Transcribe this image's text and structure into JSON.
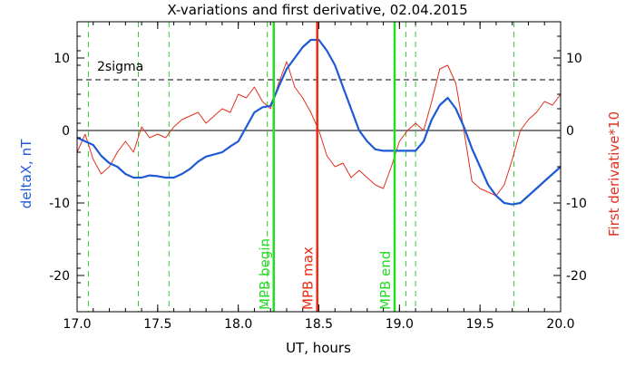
{
  "chart_data": {
    "type": "line",
    "title": "X-variations and first derivative, 02.04.2015",
    "xlabel": "UT, hours",
    "ylabel_left": "deltaX, nT",
    "ylabel_right": "First derivative*10",
    "xlim": [
      17.0,
      20.0
    ],
    "ylim": [
      -25,
      15
    ],
    "x_ticks": [
      17.0,
      17.5,
      18.0,
      18.5,
      19.0,
      19.5,
      20.0
    ],
    "x_tick_labels": [
      "17.0",
      "17.5",
      "18.0",
      "18.5",
      "19.0",
      "19.5",
      "20.0"
    ],
    "y_ticks": [
      -20,
      -10,
      0,
      10
    ],
    "y_tick_labels": [
      "-20",
      "-10",
      "0",
      "10"
    ],
    "colors": {
      "deltaX": "#1f5ad6",
      "derivative": "#e0301e",
      "mpb_begin_end": "#22dd22",
      "mpb_max": "#ee2a10",
      "dashed_green": "#33cc33",
      "axes": "#000000"
    },
    "series": [
      {
        "name": "deltaX, nT",
        "axis": "left",
        "x": [
          17.0,
          17.05,
          17.1,
          17.15,
          17.2,
          17.25,
          17.3,
          17.35,
          17.4,
          17.45,
          17.5,
          17.55,
          17.6,
          17.65,
          17.7,
          17.75,
          17.8,
          17.85,
          17.9,
          17.95,
          18.0,
          18.05,
          18.1,
          18.15,
          18.2,
          18.25,
          18.3,
          18.35,
          18.4,
          18.45,
          18.5,
          18.55,
          18.6,
          18.65,
          18.7,
          18.75,
          18.8,
          18.85,
          18.9,
          18.95,
          19.0,
          19.05,
          19.1,
          19.15,
          19.2,
          19.25,
          19.3,
          19.35,
          19.4,
          19.45,
          19.5,
          19.55,
          19.6,
          19.65,
          19.7,
          19.75,
          19.8,
          19.85,
          19.9,
          19.95,
          20.0
        ],
        "values": [
          -1.0,
          -1.5,
          -2.0,
          -3.5,
          -4.5,
          -5.0,
          -6.0,
          -6.5,
          -6.5,
          -6.2,
          -6.3,
          -6.5,
          -6.5,
          -6.0,
          -5.3,
          -4.3,
          -3.6,
          -3.3,
          -3.0,
          -2.2,
          -1.5,
          0.5,
          2.5,
          3.2,
          3.4,
          6.0,
          8.5,
          10.0,
          11.5,
          12.5,
          12.5,
          11.0,
          9.0,
          6.0,
          3.0,
          0.0,
          -1.5,
          -2.6,
          -2.8,
          -2.8,
          -2.8,
          -2.8,
          -2.8,
          -1.5,
          1.5,
          3.5,
          4.5,
          3.0,
          0.5,
          -2.5,
          -5.0,
          -7.5,
          -9.0,
          -10.0,
          -10.2,
          -10.0,
          -9.0,
          -8.0,
          -7.0,
          -6.0,
          -5.0
        ]
      },
      {
        "name": "First derivative*10",
        "axis": "right",
        "x": [
          17.0,
          17.05,
          17.1,
          17.15,
          17.2,
          17.25,
          17.3,
          17.35,
          17.4,
          17.45,
          17.5,
          17.55,
          17.6,
          17.65,
          17.7,
          17.75,
          17.8,
          17.85,
          17.9,
          17.95,
          18.0,
          18.05,
          18.1,
          18.15,
          18.2,
          18.25,
          18.3,
          18.35,
          18.4,
          18.45,
          18.5,
          18.55,
          18.6,
          18.65,
          18.7,
          18.75,
          18.8,
          18.85,
          18.9,
          18.95,
          19.0,
          19.05,
          19.1,
          19.15,
          19.2,
          19.25,
          19.3,
          19.35,
          19.4,
          19.45,
          19.5,
          19.55,
          19.6,
          19.65,
          19.7,
          19.75,
          19.8,
          19.85,
          19.9,
          19.95,
          20.0
        ],
        "values": [
          -3.0,
          -0.5,
          -4.0,
          -6.0,
          -5.0,
          -3.0,
          -1.5,
          -3.0,
          0.5,
          -1.0,
          -0.5,
          -1.0,
          0.5,
          1.5,
          2.0,
          2.5,
          1.0,
          2.0,
          3.0,
          2.5,
          5.0,
          4.5,
          6.0,
          4.0,
          3.0,
          6.5,
          9.5,
          6.0,
          4.5,
          2.5,
          0.0,
          -3.5,
          -5.0,
          -4.5,
          -6.5,
          -5.5,
          -6.5,
          -7.5,
          -8.0,
          -5.0,
          -1.5,
          0.0,
          1.0,
          0.0,
          4.0,
          8.5,
          9.0,
          6.5,
          0.0,
          -7.0,
          -8.0,
          -8.5,
          -9.0,
          -7.5,
          -4.0,
          0.0,
          1.5,
          2.5,
          4.0,
          3.5,
          5.0
        ]
      }
    ],
    "threshold": {
      "label": "2sigma",
      "value": 7
    },
    "zero_line": 0,
    "vertical_markers": [
      {
        "label": "MPB begin",
        "x": 18.22,
        "style": "solid",
        "color": "#22dd22"
      },
      {
        "label": "MPB max",
        "x": 18.49,
        "style": "solid",
        "color": "#ee2a10"
      },
      {
        "label": "MPB end",
        "x": 18.97,
        "style": "solid",
        "color": "#22dd22"
      }
    ],
    "dashed_markers_x": [
      17.07,
      17.38,
      17.57,
      18.18,
      19.04,
      19.1,
      19.71
    ],
    "grid": false
  }
}
